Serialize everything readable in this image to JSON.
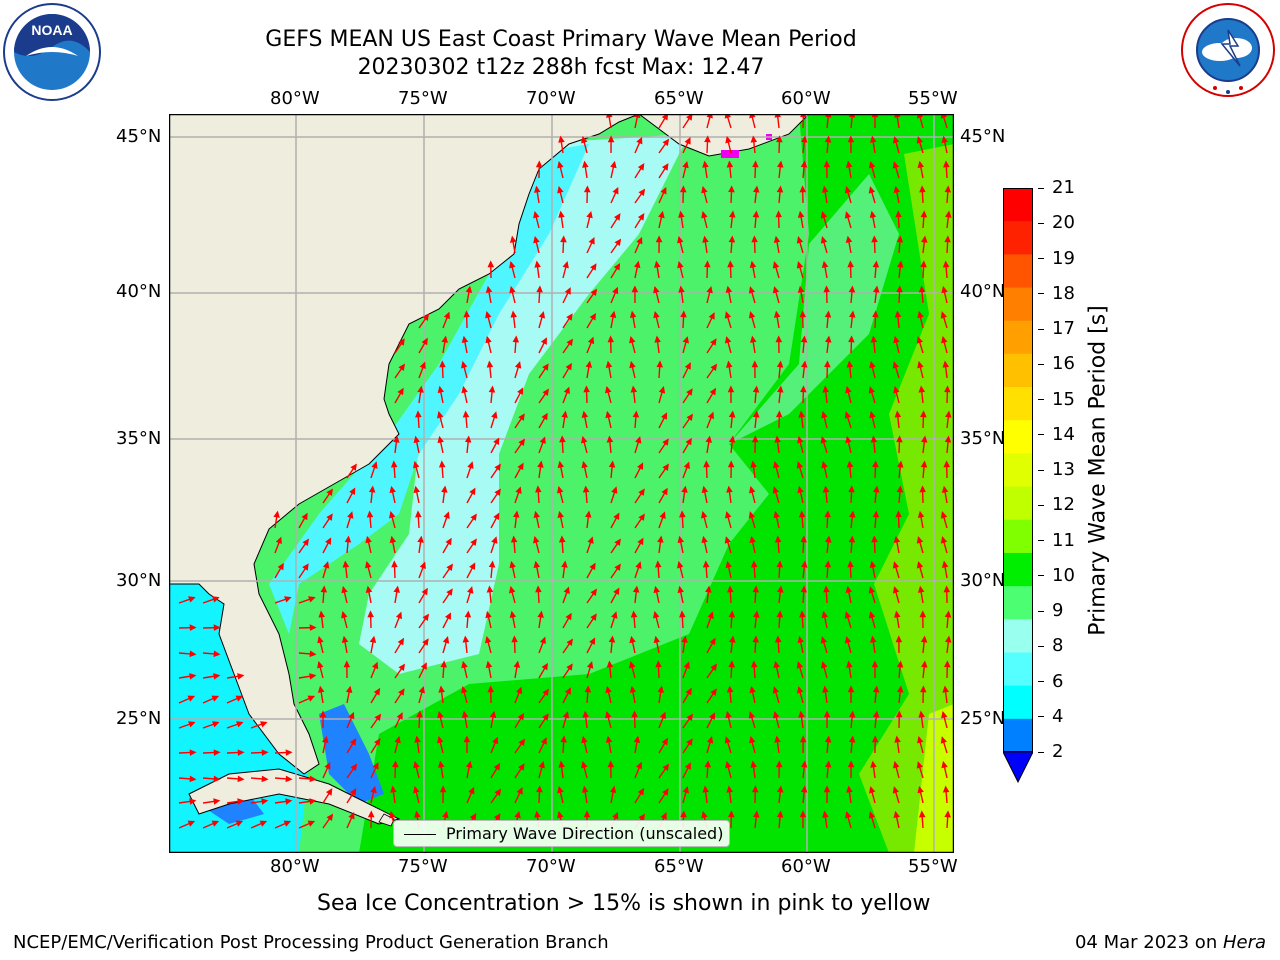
{
  "header": {
    "title_line1": "GEFS MEAN US East Coast Primary Wave Mean Period",
    "title_line2": "20230302 t12z 288h fcst   Max: 12.47"
  },
  "map": {
    "lon_labels": [
      "80°W",
      "75°W",
      "70°W",
      "65°W",
      "60°W",
      "55°W"
    ],
    "lat_labels": [
      "45°N",
      "40°N",
      "35°N",
      "30°N",
      "25°N"
    ],
    "legend_label": "Primary Wave Direction (unscaled)",
    "arrow_color": "#ff0000",
    "land_color": "#efedde",
    "grid_color": "#b0b0b0"
  },
  "colorbar": {
    "label": "Primary Wave Mean Period [s]",
    "ticks": [
      "21",
      "20",
      "19",
      "18",
      "17",
      "16",
      "15",
      "14",
      "13",
      "12",
      "11",
      "10",
      "9",
      "8",
      "6",
      "4",
      "2"
    ],
    "colors": [
      "#ff0000",
      "#ff2200",
      "#ff5500",
      "#ff7f00",
      "#ffa000",
      "#ffc000",
      "#ffe000",
      "#ffff00",
      "#e0ff00",
      "#c0ff00",
      "#80ff00",
      "#00ee00",
      "#4cff72",
      "#99ffee",
      "#55ffff",
      "#00ffff",
      "#0080ff"
    ],
    "extend_color": "#0000ff"
  },
  "notes": {
    "sea_ice": "Sea Ice Concentration > 15% is shown in pink to yellow"
  },
  "footer": {
    "left": "NCEP/EMC/Verification Post Processing Product Generation Branch",
    "date": "04 Mar 2023 on ",
    "machine": "Hera"
  },
  "logos": {
    "noaa_text": "NOAA",
    "nws_text": "NATIONAL WEATHER SERVICE"
  }
}
